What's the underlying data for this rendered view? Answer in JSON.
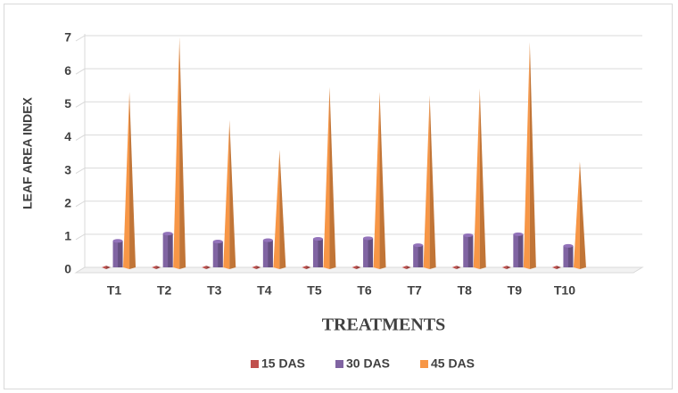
{
  "chart_data": {
    "type": "bar3d",
    "xlabel": "TREATMENTS",
    "ylabel": "LEAF AREA INDEX",
    "categories": [
      "T1",
      "T2",
      "T3",
      "T4",
      "T5",
      "T6",
      "T7",
      "T8",
      "T9",
      "T10"
    ],
    "series": [
      {
        "name": "15 DAS",
        "color": "#c0504d",
        "values": [
          0.05,
          0.05,
          0.05,
          0.05,
          0.05,
          0.05,
          0.05,
          0.05,
          0.05,
          0.05
        ]
      },
      {
        "name": "30 DAS",
        "color": "#8064a2",
        "values": [
          0.8,
          1.02,
          0.78,
          0.82,
          0.86,
          0.88,
          0.67,
          0.97,
          1.0,
          0.65
        ]
      },
      {
        "name": "45 DAS",
        "color": "#f79646",
        "values": [
          5.3,
          6.95,
          4.45,
          3.55,
          5.45,
          5.3,
          5.2,
          5.4,
          6.8,
          3.2
        ]
      }
    ],
    "ylim": [
      0,
      7
    ],
    "yticks": [
      0,
      1,
      2,
      3,
      4,
      5,
      6,
      7
    ],
    "grid": true,
    "legend": "bottom"
  }
}
